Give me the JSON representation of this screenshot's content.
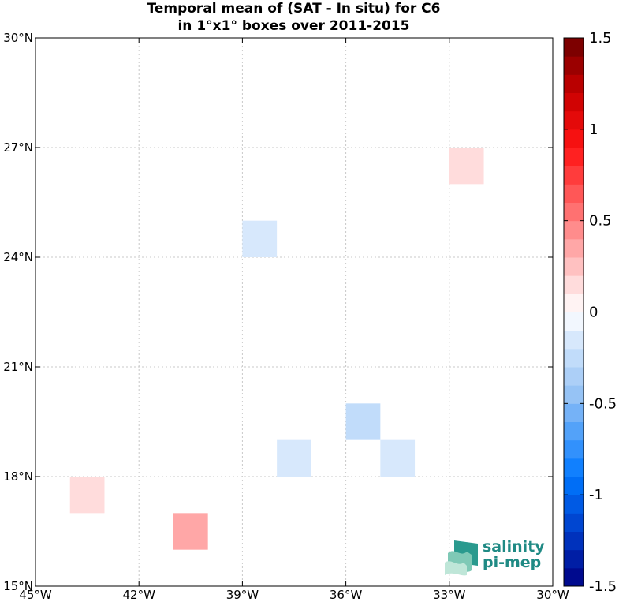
{
  "chart_data": {
    "type": "heatmap",
    "title": "Temporal mean of (SAT - In situ) for C6",
    "subtitle": "in 1°x1° boxes over 2011-2015",
    "xlim": [
      -45,
      -30
    ],
    "ylim": [
      15,
      30
    ],
    "x_ticks": [
      {
        "value": -45,
        "label": "45°W"
      },
      {
        "value": -42,
        "label": "42°W"
      },
      {
        "value": -39,
        "label": "39°W"
      },
      {
        "value": -36,
        "label": "36°W"
      },
      {
        "value": -33,
        "label": "33°W"
      },
      {
        "value": -30,
        "label": "30°W"
      }
    ],
    "y_ticks": [
      {
        "value": 15,
        "label": "15°N"
      },
      {
        "value": 18,
        "label": "18°N"
      },
      {
        "value": 21,
        "label": "21°N"
      },
      {
        "value": 24,
        "label": "24°N"
      },
      {
        "value": 27,
        "label": "27°N"
      },
      {
        "value": 30,
        "label": "30°N"
      }
    ],
    "grid": true,
    "cells": [
      {
        "lon": -44,
        "lat": 17,
        "value": 0.15
      },
      {
        "lon": -41,
        "lat": 16,
        "value": 0.35
      },
      {
        "lon": -39,
        "lat": 24,
        "value": -0.15
      },
      {
        "lon": -38,
        "lat": 18,
        "value": -0.15
      },
      {
        "lon": -36,
        "lat": 19,
        "value": -0.25
      },
      {
        "lon": -35,
        "lat": 18,
        "value": -0.15
      },
      {
        "lon": -33,
        "lat": 26,
        "value": 0.15
      }
    ],
    "colorbar": {
      "range": [
        -1.5,
        1.5
      ],
      "levels": 30,
      "ticks": [
        {
          "value": 1.5,
          "label": "1.5"
        },
        {
          "value": 1,
          "label": "1"
        },
        {
          "value": 0.5,
          "label": "0.5"
        },
        {
          "value": 0,
          "label": "0"
        },
        {
          "value": -0.5,
          "label": "-0.5"
        },
        {
          "value": -1,
          "label": "-1"
        },
        {
          "value": -1.5,
          "label": "-1.5"
        }
      ]
    }
  },
  "logo": {
    "line1": "salinity",
    "line2": "pi-mep",
    "color": "#1f8a84"
  }
}
